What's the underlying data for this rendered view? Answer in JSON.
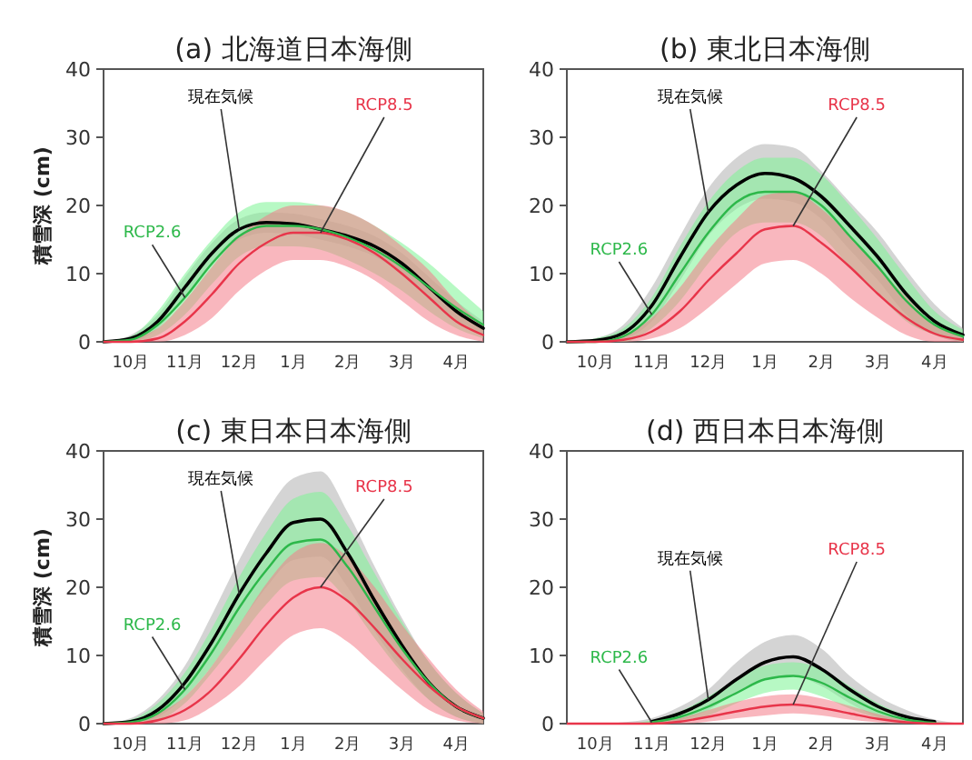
{
  "chart_data": [
    {
      "type": "line",
      "title": "(a) 北海道日本海側",
      "ylabel": "積雪深 (cm)",
      "categories": [
        null,
        "10月",
        null,
        "11月",
        null,
        "12月",
        null,
        "1月",
        null,
        "2月",
        null,
        "3月",
        null,
        "4月",
        null
      ],
      "ylim": [
        0,
        40
      ],
      "yticks": [
        0,
        10,
        20,
        30,
        40
      ],
      "series": [
        {
          "name": "現在気候",
          "color": "#000000",
          "values": [
            0,
            0.5,
            3,
            8,
            13,
            16.5,
            17.5,
            17.3,
            16.5,
            15.5,
            14,
            11.5,
            8,
            4.5,
            2
          ],
          "lower": [
            0,
            0,
            2,
            6.5,
            11.5,
            15,
            16,
            15.8,
            15,
            14,
            12.5,
            10,
            6.5,
            3,
            1
          ],
          "upper": [
            0,
            1,
            4,
            9.5,
            14.5,
            18,
            19,
            18.8,
            18,
            17,
            15.5,
            13,
            9.5,
            6,
            3
          ]
        },
        {
          "name": "RCP2.6",
          "color": "#2db84a",
          "values": [
            0,
            0.3,
            2.5,
            6.5,
            11.5,
            15.5,
            17,
            17,
            16.5,
            15.3,
            13.5,
            11,
            8,
            5,
            2.5
          ],
          "lower": [
            0,
            0,
            1,
            4,
            8.5,
            12.5,
            14,
            14,
            13.5,
            12,
            10,
            7.5,
            4.5,
            2,
            0.5
          ],
          "upper": [
            0,
            0.8,
            4.5,
            10,
            15,
            19,
            20.5,
            20.5,
            20,
            19,
            17,
            14.5,
            11.5,
            8,
            4.5
          ]
        },
        {
          "name": "RCP8.5",
          "color": "#e8354a",
          "values": [
            0,
            0,
            0.5,
            3,
            7,
            11.5,
            14.5,
            16,
            16,
            15,
            13,
            10,
            6.5,
            3,
            1
          ],
          "lower": [
            0,
            0,
            0,
            1,
            3.5,
            7.5,
            10.5,
            12,
            12,
            11,
            9,
            6,
            3,
            1,
            0
          ],
          "upper": [
            0,
            0.5,
            2,
            6,
            11,
            15.5,
            18.5,
            20,
            20,
            19,
            17,
            14,
            10.5,
            6,
            2.5
          ]
        }
      ]
    },
    {
      "type": "line",
      "title": "(b) 東北日本海側",
      "categories": [
        null,
        "10月",
        null,
        "11月",
        null,
        "12月",
        null,
        "1月",
        null,
        "2月",
        null,
        "3月",
        null,
        "4月",
        null
      ],
      "ylim": [
        0,
        40
      ],
      "yticks": [
        0,
        10,
        20,
        30,
        40
      ],
      "series": [
        {
          "name": "現在気候",
          "color": "#000000",
          "values": [
            0,
            0.2,
            1.3,
            5.3,
            12.4,
            19,
            23,
            24.7,
            24,
            21.3,
            17,
            12.4,
            7,
            3,
            1
          ],
          "lower": [
            0,
            0,
            0.5,
            3,
            9,
            15.5,
            19.5,
            21,
            20.5,
            18,
            13.5,
            9,
            4,
            1,
            0
          ],
          "upper": [
            0,
            0.5,
            2.5,
            8,
            15.5,
            22.5,
            27,
            29,
            28.5,
            25,
            20.5,
            16,
            10.5,
            5.5,
            2
          ]
        },
        {
          "name": "RCP2.6",
          "color": "#2db84a",
          "values": [
            0,
            0,
            0.8,
            4,
            10,
            16,
            20.5,
            22,
            22,
            20,
            15.5,
            11,
            6,
            2.5,
            0.8
          ],
          "lower": [
            0,
            0,
            0,
            2,
            6,
            11.5,
            16,
            17.5,
            17.5,
            15.5,
            11,
            7,
            3,
            1,
            0
          ],
          "upper": [
            0,
            0.5,
            2,
            6.5,
            14,
            20.5,
            25,
            27,
            27,
            24.5,
            20,
            15,
            9.5,
            4.5,
            1.8
          ]
        },
        {
          "name": "RCP8.5",
          "color": "#e8354a",
          "values": [
            0,
            0,
            0.3,
            1.5,
            4.5,
            9,
            13,
            16.5,
            17,
            14.5,
            11,
            7,
            3.5,
            1.2,
            0.3
          ],
          "lower": [
            0,
            0,
            0,
            0.5,
            2,
            5,
            8.5,
            11.5,
            12,
            10,
            6.5,
            3.5,
            1,
            0,
            0
          ],
          "upper": [
            0,
            0,
            1,
            3.5,
            8,
            13.5,
            18,
            21.5,
            22,
            19.5,
            15.5,
            11,
            6.5,
            2.5,
            0.8
          ]
        }
      ]
    },
    {
      "type": "line",
      "title": "(c) 東日本日本海側",
      "ylabel": "積雪深 (cm)",
      "categories": [
        null,
        "10月",
        null,
        "11月",
        null,
        "12月",
        null,
        "1月",
        null,
        "2月",
        null,
        "3月",
        null,
        "4月",
        null
      ],
      "ylim": [
        0,
        40
      ],
      "yticks": [
        0,
        10,
        20,
        30,
        40
      ],
      "series": [
        {
          "name": "現在気候",
          "color": "#000000",
          "values": [
            0,
            0.3,
            2,
            6,
            12,
            19,
            25,
            29.5,
            30,
            25,
            18,
            11.5,
            6,
            2.5,
            0.8
          ],
          "lower": [
            0,
            0,
            1,
            4,
            8.5,
            14.5,
            20,
            24,
            24.5,
            20,
            13.5,
            8,
            3.5,
            1,
            0
          ],
          "upper": [
            0,
            0.8,
            3.5,
            8.5,
            16,
            24,
            31,
            36,
            37,
            31,
            23,
            15.5,
            9,
            4.5,
            1.5
          ]
        },
        {
          "name": "RCP2.6",
          "color": "#2db84a",
          "values": [
            0,
            0.2,
            1.5,
            5,
            10.5,
            17,
            22.5,
            26.5,
            27,
            23,
            17,
            11,
            6,
            2.5,
            0.8
          ],
          "lower": [
            0,
            0,
            0.5,
            3,
            7.5,
            12.5,
            17.5,
            21,
            21.5,
            18,
            12.5,
            7.5,
            3.5,
            1,
            0
          ],
          "upper": [
            0,
            0.6,
            3,
            7.5,
            14,
            21.5,
            28,
            33,
            34,
            29,
            22,
            15,
            9,
            4.5,
            1.5
          ]
        },
        {
          "name": "RCP8.5",
          "color": "#e8354a",
          "values": [
            0,
            0,
            0.5,
            2,
            5,
            9.5,
            14.5,
            18.5,
            20,
            18,
            14,
            9.5,
            5.5,
            2.5,
            0.8
          ],
          "lower": [
            0,
            0,
            0,
            0.5,
            2.5,
            5.5,
            9.5,
            13,
            14,
            12,
            8.5,
            5,
            2,
            0.5,
            0
          ],
          "upper": [
            0,
            0.3,
            1.5,
            4,
            8.5,
            14.5,
            20.5,
            25,
            26.5,
            24.5,
            20,
            14.5,
            9.5,
            5,
            1.8
          ]
        }
      ]
    },
    {
      "type": "line",
      "title": "(d) 西日本日本海側",
      "categories": [
        null,
        "10月",
        null,
        "11月",
        null,
        "12月",
        null,
        "1月",
        null,
        "2月",
        null,
        "3月",
        null,
        "4月",
        null
      ],
      "ylim": [
        0,
        40
      ],
      "yticks": [
        0,
        10,
        20,
        30,
        40
      ],
      "series": [
        {
          "name": "現在気候",
          "color": "#000000",
          "values": [
            null,
            null,
            null,
            0.3,
            1.5,
            3.5,
            6.5,
            9,
            9.8,
            8,
            5,
            2.5,
            1,
            0.3,
            null
          ],
          "lower": [
            0,
            0,
            0,
            0,
            0.5,
            2,
            4.5,
            6.5,
            7,
            5.5,
            3,
            1,
            0.2,
            0,
            0
          ],
          "upper": [
            0,
            0,
            0.2,
            0.8,
            2.5,
            5,
            9,
            12,
            13,
            11,
            7,
            4,
            2,
            0.6,
            0
          ]
        },
        {
          "name": "RCP2.6",
          "color": "#2db84a",
          "values": [
            null,
            null,
            null,
            0.2,
            1,
            2.5,
            4.5,
            6.5,
            7,
            6,
            3.8,
            1.8,
            0.6,
            0.1,
            null
          ],
          "lower": [
            0,
            0,
            0,
            0,
            0.3,
            1.2,
            3,
            4.5,
            5,
            4,
            2.2,
            0.8,
            0.1,
            0,
            0
          ],
          "upper": [
            0,
            0,
            0,
            0.5,
            1.8,
            4,
            6.5,
            8.5,
            9,
            8,
            5.5,
            3,
            1.2,
            0.3,
            0
          ]
        },
        {
          "name": "RCP8.5",
          "color": "#e8354a",
          "values": [
            0,
            0,
            0,
            0,
            0.3,
            1,
            1.8,
            2.5,
            2.8,
            2.3,
            1.5,
            0.7,
            0.2,
            0,
            0
          ],
          "lower": [
            0,
            0,
            0,
            0,
            0,
            0.3,
            0.8,
            1.2,
            1.5,
            1.2,
            0.6,
            0.2,
            0,
            0,
            0
          ],
          "upper": [
            0,
            0,
            0,
            0.2,
            0.8,
            2,
            3.2,
            4,
            4.3,
            3.7,
            2.6,
            1.4,
            0.5,
            0.1,
            0
          ]
        }
      ]
    }
  ]
}
